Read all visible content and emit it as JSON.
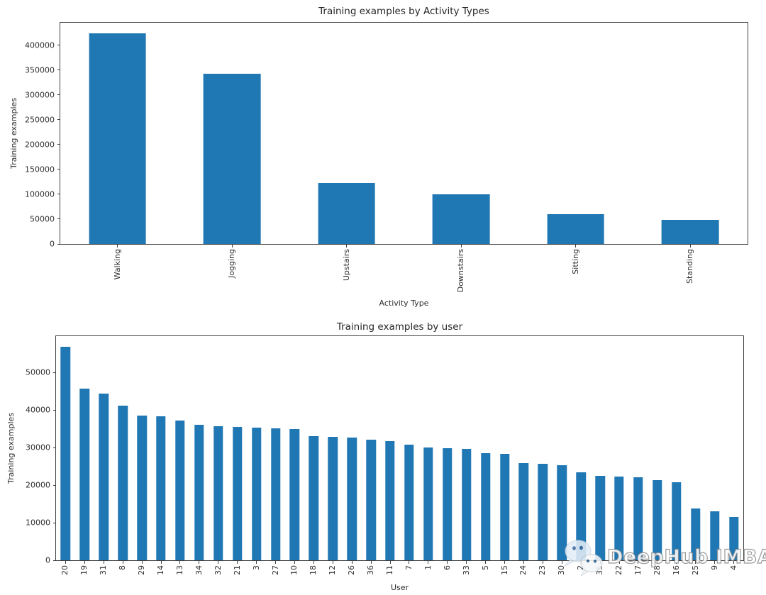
{
  "figure": {
    "background": "#ffffff"
  },
  "watermark": {
    "text": "DeepHub IMBA",
    "icon": "wechat-bubbles"
  },
  "chart_data": [
    {
      "type": "bar",
      "title": "Training examples by Activity Types",
      "xlabel": "Activity Type",
      "ylabel": "Training examples",
      "categories": [
        "Walking",
        "Jogging",
        "Upstairs",
        "Downstairs",
        "Sitting",
        "Standing"
      ],
      "values": [
        424400,
        342177,
        122869,
        100427,
        59939,
        48395
      ],
      "ylim": [
        0,
        445600
      ],
      "yticks": [
        0,
        50000,
        100000,
        150000,
        200000,
        250000,
        300000,
        350000,
        400000
      ],
      "xtick_rotation": 90,
      "grid": false,
      "legend": null,
      "bar_color": "#1f77b4",
      "bar_width_ratio": 0.5
    },
    {
      "type": "bar",
      "title": "Training examples by user",
      "xlabel": "User",
      "ylabel": "Training examples",
      "categories": [
        "20",
        "19",
        "31",
        "8",
        "29",
        "14",
        "13",
        "34",
        "32",
        "21",
        "3",
        "27",
        "10",
        "18",
        "12",
        "26",
        "36",
        "11",
        "7",
        "1",
        "6",
        "33",
        "5",
        "15",
        "24",
        "23",
        "30",
        "2",
        "35",
        "22",
        "17",
        "28",
        "16",
        "25",
        "9",
        "4"
      ],
      "values": [
        56900,
        45700,
        44400,
        41200,
        38500,
        38400,
        37200,
        36100,
        35700,
        35600,
        35300,
        35200,
        35000,
        33100,
        32800,
        32700,
        32100,
        31800,
        30800,
        30100,
        29900,
        29700,
        28600,
        28400,
        25900,
        25700,
        25400,
        23400,
        22400,
        22300,
        22200,
        21400,
        20700,
        13700,
        13000,
        11500
      ],
      "ylim": [
        0,
        59700
      ],
      "yticks": [
        0,
        10000,
        20000,
        30000,
        40000,
        50000
      ],
      "xtick_rotation": 90,
      "grid": false,
      "legend": null,
      "bar_color": "#1f77b4",
      "bar_width_ratio": 0.5
    }
  ]
}
